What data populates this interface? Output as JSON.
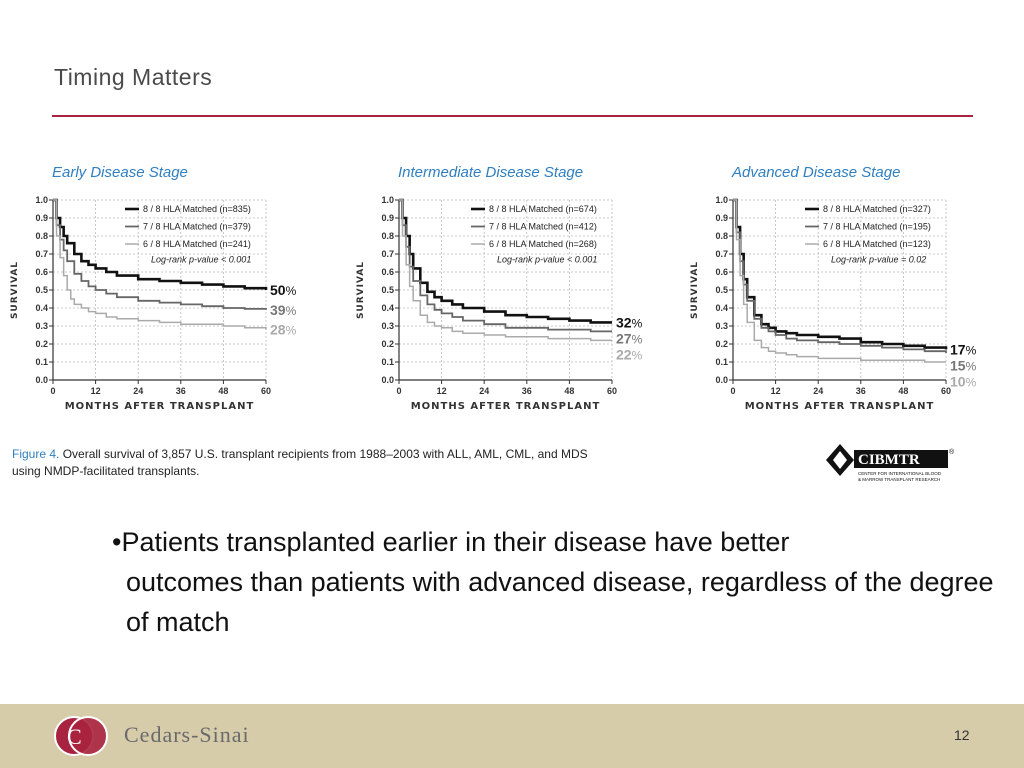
{
  "slide": {
    "title": "Timing Matters",
    "figure_caption_label": "Figure 4.",
    "figure_caption_text": "Overall survival of 3,857 U.S. transplant recipients from 1988–2003 with ALL, AML, CML, and MDS using NMDP-facilitated transplants.",
    "cibmtr_logo_text": "CIBMTR",
    "cibmtr_registered": "®",
    "cibmtr_subtitle_1": "CENTER FOR INTERNATIONAL BLOOD",
    "cibmtr_subtitle_2": "& MARROW TRANSPLANT RESEARCH",
    "bullet_first": "•Patients transplanted earlier in their disease have better",
    "bullet_rest": "outcomes than patients with advanced disease, regardless of the degree of match",
    "footer_logo_text": "C",
    "footer_name": "Cedars-Sinai",
    "page_number": "12"
  },
  "colors": {
    "accent": "#a8233f",
    "title_blue": "#2f7fc1",
    "footer_bg": "#d6ccaa"
  },
  "chart_data": [
    {
      "type": "line",
      "title": "Early Disease Stage",
      "xlabel": "MONTHS AFTER TRANSPLANT",
      "ylabel": "SURVIVAL",
      "xlim": [
        0,
        60
      ],
      "ylim": [
        0,
        1.0
      ],
      "xticks": [
        "0",
        "12",
        "24",
        "36",
        "48",
        "60"
      ],
      "yticks": [
        "0.0",
        "0.1",
        "0.2",
        "0.3",
        "0.4",
        "0.5",
        "0.6",
        "0.7",
        "0.8",
        "0.9",
        "1.0"
      ],
      "grid": true,
      "legend_position": "top-right",
      "pvalue": "Log-rank p-value < 0.001",
      "series": [
        {
          "name": "8 / 8 HLA Matched (n=835)",
          "color": "#111111",
          "width": 2.6,
          "end_label": "50",
          "end_color": "#111111",
          "x": [
            0,
            1,
            2,
            3,
            4,
            6,
            8,
            10,
            12,
            15,
            18,
            24,
            30,
            36,
            42,
            48,
            54,
            60
          ],
          "y": [
            1.0,
            0.9,
            0.85,
            0.8,
            0.76,
            0.7,
            0.66,
            0.64,
            0.62,
            0.6,
            0.58,
            0.56,
            0.55,
            0.54,
            0.53,
            0.52,
            0.51,
            0.5
          ]
        },
        {
          "name": "7 / 8 HLA Matched (n=379)",
          "color": "#666666",
          "width": 1.8,
          "end_label": "39",
          "end_color": "#777777",
          "x": [
            0,
            1,
            2,
            3,
            4,
            6,
            8,
            10,
            12,
            15,
            18,
            24,
            30,
            36,
            42,
            48,
            54,
            60
          ],
          "y": [
            1.0,
            0.86,
            0.78,
            0.72,
            0.66,
            0.59,
            0.55,
            0.52,
            0.5,
            0.48,
            0.46,
            0.44,
            0.43,
            0.42,
            0.41,
            0.4,
            0.395,
            0.39
          ]
        },
        {
          "name": "6 / 8 HLA Matched (n=241)",
          "color": "#aaaaaa",
          "width": 1.5,
          "end_label": "28",
          "end_color": "#aaaaaa",
          "x": [
            0,
            1,
            2,
            3,
            4,
            5,
            6,
            8,
            10,
            12,
            15,
            18,
            24,
            30,
            36,
            42,
            48,
            54,
            60
          ],
          "y": [
            1.0,
            0.8,
            0.68,
            0.58,
            0.5,
            0.45,
            0.42,
            0.4,
            0.38,
            0.37,
            0.35,
            0.34,
            0.33,
            0.32,
            0.31,
            0.31,
            0.3,
            0.29,
            0.28
          ]
        }
      ],
      "end_unit": "%"
    },
    {
      "type": "line",
      "title": "Intermediate Disease Stage",
      "xlabel": "MONTHS AFTER TRANSPLANT",
      "ylabel": "SURVIVAL",
      "xlim": [
        0,
        60
      ],
      "ylim": [
        0,
        1.0
      ],
      "xticks": [
        "0",
        "12",
        "24",
        "36",
        "48",
        "60"
      ],
      "yticks": [
        "0.0",
        "0.1",
        "0.2",
        "0.3",
        "0.4",
        "0.5",
        "0.6",
        "0.7",
        "0.8",
        "0.9",
        "1.0"
      ],
      "grid": true,
      "legend_position": "top-right",
      "pvalue": "Log-rank p-value < 0.001",
      "series": [
        {
          "name": "8 / 8 HLA Matched (n=674)",
          "color": "#111111",
          "width": 2.6,
          "end_label": "32",
          "end_color": "#111111",
          "x": [
            0,
            1,
            2,
            3,
            4,
            6,
            8,
            10,
            12,
            15,
            18,
            24,
            30,
            36,
            42,
            48,
            54,
            60
          ],
          "y": [
            1.0,
            0.9,
            0.8,
            0.7,
            0.62,
            0.54,
            0.49,
            0.46,
            0.44,
            0.42,
            0.4,
            0.38,
            0.36,
            0.35,
            0.34,
            0.33,
            0.32,
            0.32
          ]
        },
        {
          "name": "7 / 8 HLA Matched (n=412)",
          "color": "#666666",
          "width": 1.8,
          "end_label": "27",
          "end_color": "#777777",
          "x": [
            0,
            1,
            2,
            3,
            4,
            6,
            8,
            10,
            12,
            15,
            18,
            24,
            30,
            36,
            42,
            48,
            54,
            60
          ],
          "y": [
            1.0,
            0.86,
            0.74,
            0.63,
            0.55,
            0.47,
            0.42,
            0.39,
            0.37,
            0.35,
            0.33,
            0.31,
            0.29,
            0.29,
            0.28,
            0.28,
            0.27,
            0.27
          ]
        },
        {
          "name": "6 / 8 HLA Matched (n=268)",
          "color": "#aaaaaa",
          "width": 1.5,
          "end_label": "22",
          "end_color": "#aaaaaa",
          "x": [
            0,
            1,
            2,
            3,
            4,
            6,
            8,
            10,
            12,
            15,
            18,
            24,
            30,
            36,
            42,
            48,
            54,
            60
          ],
          "y": [
            1.0,
            0.8,
            0.64,
            0.52,
            0.44,
            0.36,
            0.32,
            0.3,
            0.29,
            0.27,
            0.26,
            0.25,
            0.24,
            0.24,
            0.23,
            0.23,
            0.22,
            0.22
          ]
        }
      ],
      "end_unit": "%"
    },
    {
      "type": "line",
      "title": "Advanced Disease Stage",
      "xlabel": "MONTHS AFTER TRANSPLANT",
      "ylabel": "SURVIVAL",
      "xlim": [
        0,
        60
      ],
      "ylim": [
        0,
        1.0
      ],
      "xticks": [
        "0",
        "12",
        "24",
        "36",
        "48",
        "60"
      ],
      "yticks": [
        "0.0",
        "0.1",
        "0.2",
        "0.3",
        "0.4",
        "0.5",
        "0.6",
        "0.7",
        "0.8",
        "0.9",
        "1.0"
      ],
      "grid": true,
      "legend_position": "top-right",
      "pvalue": "Log-rank p-value = 0.02",
      "series": [
        {
          "name": "8 / 8 HLA Matched (n=327)",
          "color": "#111111",
          "width": 2.6,
          "end_label": "17",
          "end_color": "#111111",
          "x": [
            0,
            1,
            2,
            3,
            4,
            6,
            8,
            10,
            12,
            15,
            18,
            24,
            30,
            36,
            42,
            48,
            54,
            60
          ],
          "y": [
            1.0,
            0.85,
            0.7,
            0.56,
            0.46,
            0.36,
            0.31,
            0.29,
            0.27,
            0.26,
            0.25,
            0.24,
            0.23,
            0.21,
            0.2,
            0.19,
            0.18,
            0.17
          ]
        },
        {
          "name": "7 / 8 HLA Matched (n=195)",
          "color": "#666666",
          "width": 1.8,
          "end_label": "15",
          "end_color": "#777777",
          "x": [
            0,
            1,
            2,
            3,
            4,
            6,
            8,
            10,
            12,
            15,
            18,
            24,
            30,
            36,
            42,
            48,
            54,
            60
          ],
          "y": [
            1.0,
            0.82,
            0.66,
            0.53,
            0.44,
            0.34,
            0.29,
            0.27,
            0.25,
            0.23,
            0.22,
            0.21,
            0.2,
            0.19,
            0.18,
            0.17,
            0.16,
            0.15
          ]
        },
        {
          "name": "6 / 8 HLA Matched (n=123)",
          "color": "#aaaaaa",
          "width": 1.5,
          "end_label": "10",
          "end_color": "#aaaaaa",
          "x": [
            0,
            1,
            2,
            3,
            4,
            6,
            8,
            10,
            12,
            15,
            18,
            24,
            30,
            36,
            42,
            48,
            54,
            60
          ],
          "y": [
            1.0,
            0.78,
            0.58,
            0.42,
            0.32,
            0.22,
            0.18,
            0.16,
            0.15,
            0.14,
            0.13,
            0.12,
            0.12,
            0.11,
            0.11,
            0.11,
            0.1,
            0.1
          ]
        }
      ],
      "end_unit": "%"
    }
  ]
}
